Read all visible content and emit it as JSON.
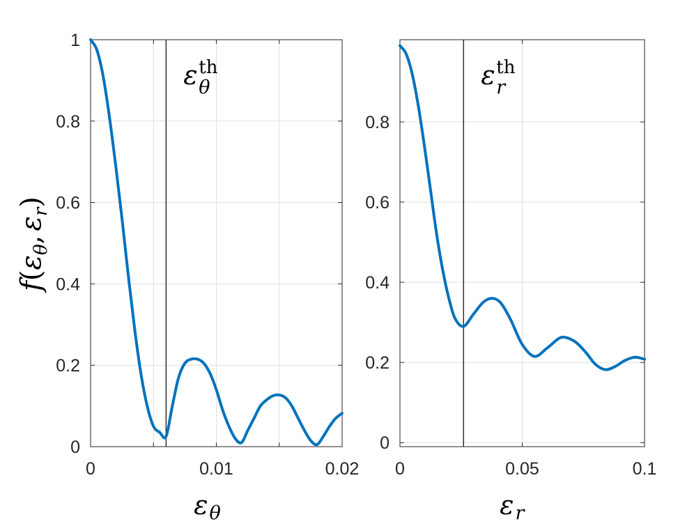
{
  "colors": {
    "line": "#0072BD",
    "axis": "#262626",
    "grid": "#DFDFDF",
    "threshold": "#000000",
    "background": "#FFFFFF"
  },
  "ylabel": {
    "f": "f",
    "open": "(",
    "eps1": "ε",
    "sub1": "θ",
    "comma": ",",
    "eps2": "ε",
    "sub2": "r",
    "close": ")"
  },
  "chart_data": [
    {
      "type": "line",
      "xlabel": {
        "symbol": "ε",
        "subscript": "θ"
      },
      "ylabel": "f(εθ, εr)",
      "xlim": [
        0,
        0.02
      ],
      "ylim": [
        0,
        1
      ],
      "grid": true,
      "xticks": [
        0,
        0.005,
        0.01,
        0.015,
        0.02
      ],
      "xtick_labels": [
        "0",
        "",
        "0.01",
        "",
        "0.02"
      ],
      "yticks": [
        0,
        0.2,
        0.4,
        0.6,
        0.8,
        1
      ],
      "ytick_labels": [
        "0",
        "0.2",
        "0.4",
        "0.6",
        "0.8",
        "1"
      ],
      "threshold": {
        "x": 0.006,
        "label": {
          "symbol": "ε",
          "superscript": "th",
          "subscript": "θ"
        }
      },
      "series": [
        {
          "x": [
            0,
            0.0005,
            0.001,
            0.0015,
            0.002,
            0.0025,
            0.003,
            0.0035,
            0.004,
            0.0045,
            0.005,
            0.0055,
            0.006,
            0.0065,
            0.007,
            0.0075,
            0.008,
            0.0085,
            0.009,
            0.0095,
            0.01,
            0.0105,
            0.011,
            0.0115,
            0.012,
            0.0125,
            0.013,
            0.0135,
            0.014,
            0.0145,
            0.015,
            0.0155,
            0.016,
            0.0165,
            0.017,
            0.0175,
            0.018,
            0.0185,
            0.019,
            0.0195,
            0.02
          ],
          "y": [
            1.0,
            0.975,
            0.91,
            0.81,
            0.69,
            0.56,
            0.42,
            0.29,
            0.18,
            0.1,
            0.05,
            0.035,
            0.025,
            0.1,
            0.17,
            0.205,
            0.215,
            0.215,
            0.205,
            0.18,
            0.14,
            0.09,
            0.05,
            0.02,
            0.01,
            0.04,
            0.07,
            0.1,
            0.115,
            0.125,
            0.127,
            0.12,
            0.1,
            0.07,
            0.04,
            0.015,
            0.005,
            0.025,
            0.05,
            0.07,
            0.082
          ]
        }
      ]
    },
    {
      "type": "line",
      "xlabel": {
        "symbol": "ε",
        "subscript": "r"
      },
      "xlim": [
        0,
        0.1
      ],
      "ylim": [
        0,
        1
      ],
      "grid": true,
      "xticks": [
        0,
        0.05,
        0.1
      ],
      "xtick_labels": [
        "0",
        "0.05",
        "0.1"
      ],
      "yticks": [
        0,
        0.2,
        0.4,
        0.6,
        0.8
      ],
      "ytick_labels": [
        "0",
        "0.2",
        "0.4",
        "0.6",
        "0.8"
      ],
      "threshold": {
        "x": 0.026,
        "label": {
          "symbol": "ε",
          "superscript": "th",
          "subscript": "r"
        }
      },
      "series": [
        {
          "x": [
            0,
            0.0025,
            0.005,
            0.0075,
            0.01,
            0.0125,
            0.015,
            0.0175,
            0.02,
            0.0225,
            0.026,
            0.03,
            0.034,
            0.0375,
            0.041,
            0.045,
            0.05,
            0.055,
            0.06,
            0.065,
            0.068,
            0.072,
            0.076,
            0.08,
            0.084,
            0.088,
            0.092,
            0.096,
            0.1
          ],
          "y": [
            0.99,
            0.97,
            0.92,
            0.84,
            0.74,
            0.63,
            0.52,
            0.43,
            0.36,
            0.31,
            0.29,
            0.32,
            0.35,
            0.36,
            0.35,
            0.31,
            0.245,
            0.215,
            0.235,
            0.26,
            0.262,
            0.25,
            0.225,
            0.195,
            0.182,
            0.19,
            0.205,
            0.213,
            0.208
          ]
        }
      ]
    }
  ]
}
